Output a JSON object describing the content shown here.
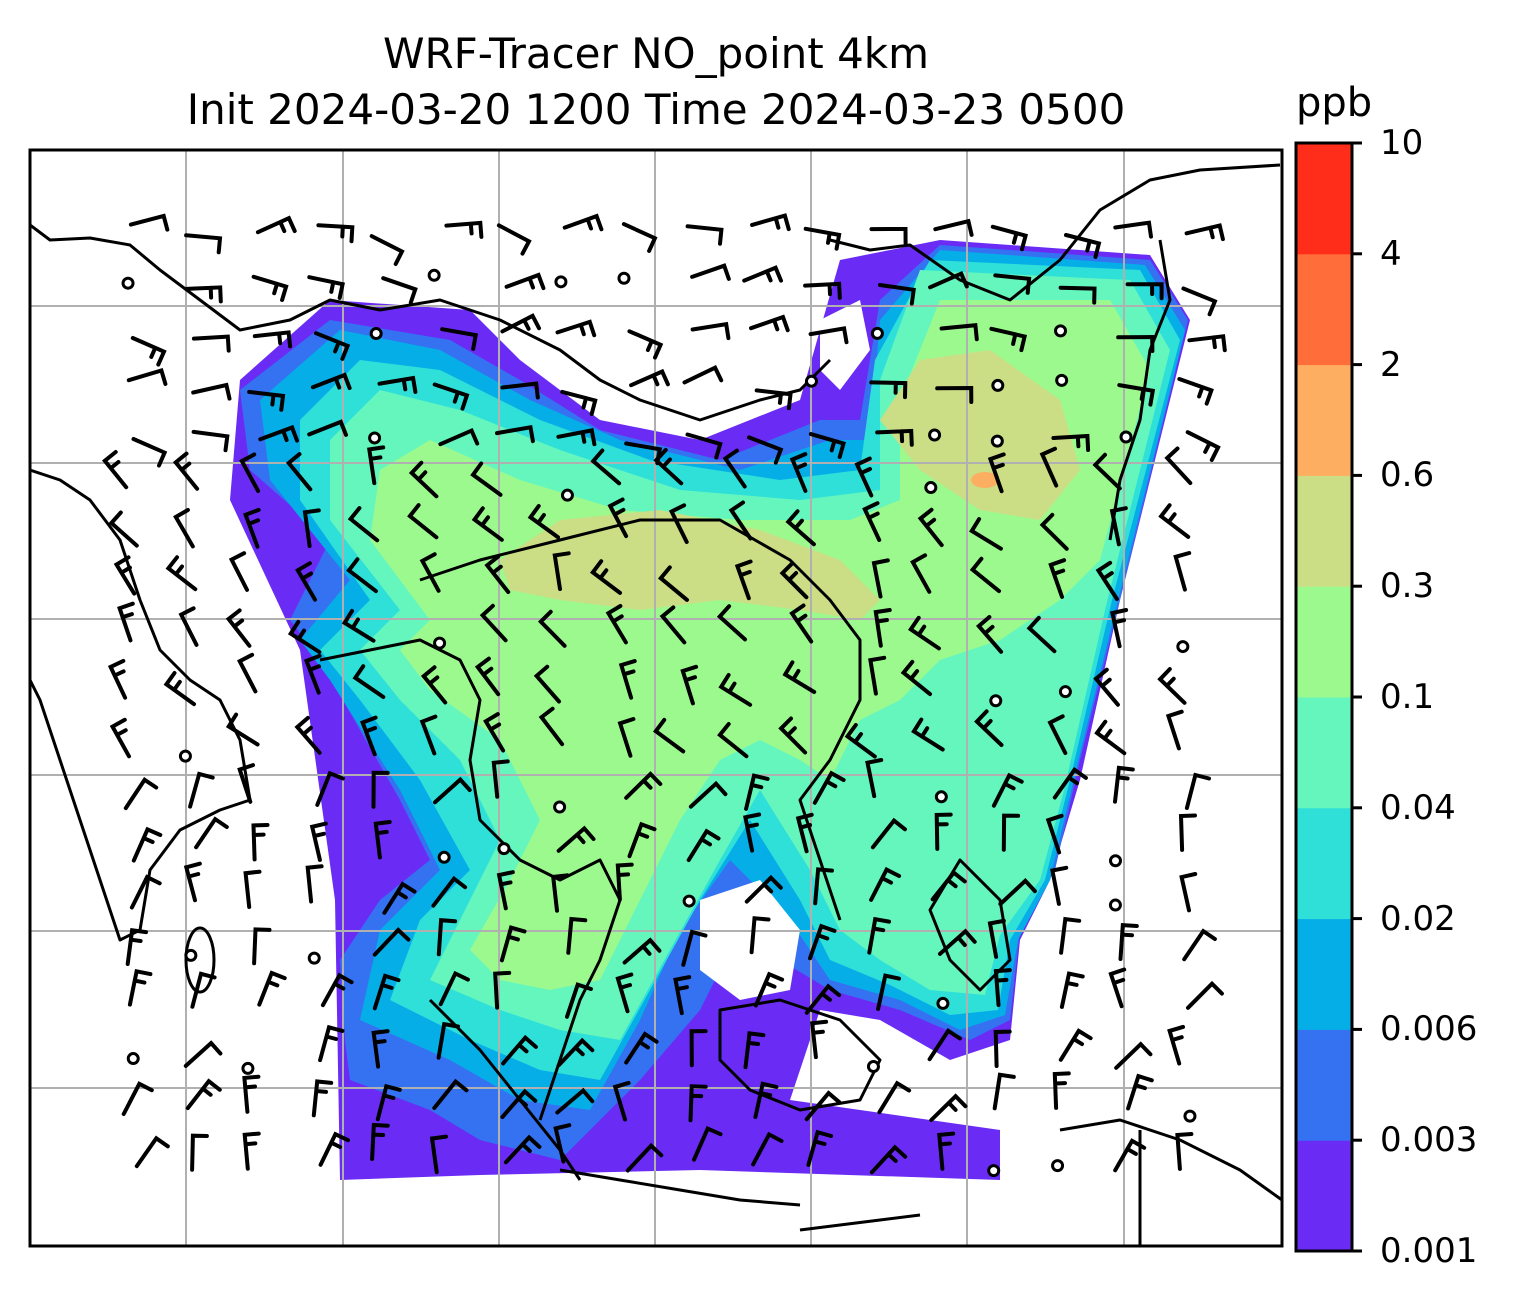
{
  "title": {
    "line1": "WRF-Tracer NO_point 4km",
    "line2": "Init 2024-03-20 1200 Time 2024-03-23 0500"
  },
  "colorbar": {
    "unit": "ppb",
    "ticks": [
      "0.001",
      "0.003",
      "0.006",
      "0.02",
      "0.04",
      "0.1",
      "0.3",
      "0.6",
      "2",
      "4",
      "10"
    ],
    "colors": [
      "#6a2cf5",
      "#3472f2",
      "#06aee8",
      "#2ee0d8",
      "#65f6be",
      "#9cf98e",
      "#cbde86",
      "#fdae61",
      "#ff6e3a",
      "#ff2d1a"
    ]
  },
  "map": {
    "gridlines": "on",
    "background": "#ffffff",
    "gridline_color": "#b0b0b0",
    "coastline_color": "#000000"
  }
}
